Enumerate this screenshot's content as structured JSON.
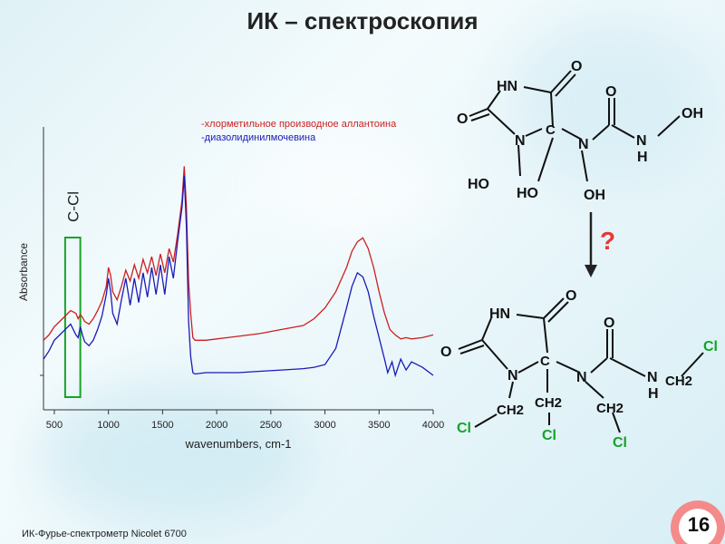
{
  "slide": {
    "title": "ИК – спектроскопия",
    "footer": "ИК-Фурье-спектрометр Nicolet 6700",
    "page_number": "16",
    "question_mark": "?"
  },
  "chart_data": {
    "type": "line",
    "xlabel": "wavenumbers, cm-1",
    "ylabel": "Absorbance",
    "xlim": [
      400,
      4000
    ],
    "x_ticks": [
      500,
      1000,
      1500,
      2000,
      2500,
      3000,
      3500,
      4000
    ],
    "grid": false,
    "legend_position": "top-center",
    "annotation": {
      "label": "C-Cl",
      "x_range": [
        600,
        740
      ]
    },
    "series": [
      {
        "name": "-хлорметильное производное аллантоина",
        "color": "#cc1f1f",
        "x": [
          400,
          450,
          500,
          550,
          600,
          650,
          700,
          720,
          740,
          760,
          780,
          820,
          860,
          900,
          940,
          980,
          1000,
          1020,
          1040,
          1080,
          1120,
          1160,
          1200,
          1240,
          1280,
          1320,
          1360,
          1400,
          1440,
          1480,
          1520,
          1560,
          1600,
          1640,
          1680,
          1700,
          1720,
          1740,
          1760,
          1780,
          1800,
          1900,
          2000,
          2200,
          2400,
          2600,
          2800,
          2900,
          3000,
          3100,
          3200,
          3250,
          3300,
          3350,
          3400,
          3450,
          3500,
          3550,
          3600,
          3650,
          3700,
          3750,
          3800,
          3900,
          4000
        ],
        "y": [
          0.26,
          0.3,
          0.36,
          0.4,
          0.44,
          0.48,
          0.46,
          0.42,
          0.45,
          0.43,
          0.4,
          0.38,
          0.42,
          0.48,
          0.55,
          0.66,
          0.8,
          0.74,
          0.62,
          0.56,
          0.66,
          0.78,
          0.7,
          0.82,
          0.72,
          0.86,
          0.76,
          0.88,
          0.74,
          0.9,
          0.76,
          0.94,
          0.84,
          1.05,
          1.3,
          1.55,
          1.25,
          0.7,
          0.46,
          0.28,
          0.26,
          0.26,
          0.27,
          0.29,
          0.31,
          0.34,
          0.37,
          0.42,
          0.5,
          0.62,
          0.8,
          0.92,
          0.99,
          1.02,
          0.94,
          0.8,
          0.62,
          0.46,
          0.34,
          0.3,
          0.27,
          0.28,
          0.27,
          0.28,
          0.3
        ]
      },
      {
        "name": "-диазолидинилмочевина",
        "color": "#1a1ab8",
        "x": [
          400,
          450,
          500,
          550,
          600,
          650,
          700,
          720,
          740,
          760,
          780,
          820,
          860,
          900,
          940,
          980,
          1000,
          1020,
          1040,
          1080,
          1120,
          1160,
          1200,
          1240,
          1280,
          1320,
          1360,
          1400,
          1440,
          1480,
          1520,
          1560,
          1600,
          1640,
          1680,
          1700,
          1720,
          1740,
          1760,
          1780,
          1800,
          1900,
          2000,
          2200,
          2400,
          2600,
          2800,
          2900,
          3000,
          3100,
          3200,
          3250,
          3300,
          3350,
          3400,
          3450,
          3500,
          3550,
          3580,
          3620,
          3650,
          3700,
          3750,
          3800,
          3900,
          4000
        ],
        "y": [
          0.12,
          0.18,
          0.26,
          0.3,
          0.34,
          0.38,
          0.3,
          0.28,
          0.36,
          0.3,
          0.25,
          0.22,
          0.26,
          0.34,
          0.44,
          0.6,
          0.72,
          0.62,
          0.46,
          0.38,
          0.56,
          0.72,
          0.52,
          0.72,
          0.54,
          0.76,
          0.58,
          0.8,
          0.6,
          0.82,
          0.6,
          0.88,
          0.72,
          1.0,
          1.25,
          1.48,
          1.1,
          0.4,
          0.14,
          0.02,
          0.01,
          0.02,
          0.02,
          0.02,
          0.03,
          0.04,
          0.05,
          0.06,
          0.08,
          0.2,
          0.5,
          0.66,
          0.76,
          0.73,
          0.62,
          0.44,
          0.28,
          0.12,
          0.02,
          0.1,
          0.0,
          0.12,
          0.04,
          0.1,
          0.06,
          0.0
        ]
      }
    ]
  },
  "structure_top": {
    "labels": [
      "HN",
      "O",
      "O",
      "N",
      "C",
      "N",
      "O",
      "N",
      "H",
      "OH",
      "HO",
      "HO",
      "OH"
    ]
  },
  "structure_bottom": {
    "labels": [
      "HN",
      "O",
      "O",
      "N",
      "C",
      "N",
      "O",
      "N",
      "H",
      "Cl",
      "CH2",
      "CH2",
      "CH2",
      "CH2",
      "Cl",
      "Cl",
      "Cl"
    ]
  }
}
